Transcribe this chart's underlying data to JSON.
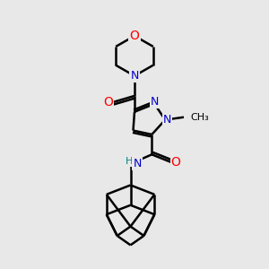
{
  "background_color": "#e8e8e8",
  "bond_color": "#000000",
  "N_color": "#0000cc",
  "O_color": "#ff0000",
  "NH_color": "#008080",
  "H_color": "#008080",
  "figsize": [
    3.0,
    3.0
  ],
  "dpi": 100,
  "xlim": [
    0,
    10
  ],
  "ylim": [
    0,
    10
  ]
}
